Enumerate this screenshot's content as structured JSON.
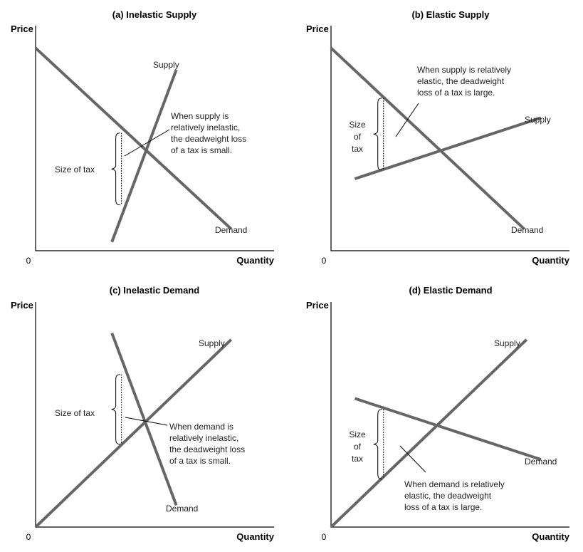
{
  "chart_data": [
    {
      "type": "line",
      "title": "(a) Inelastic Supply",
      "ylabel": "Price",
      "xlabel": "Quantity",
      "origin": "0",
      "xlim": [
        0,
        10
      ],
      "ylim": [
        0,
        10
      ],
      "series": [
        {
          "name": "Supply",
          "label": "Supply",
          "x": [
            3.2,
            5.9
          ],
          "y": [
            0.4,
            8.3
          ]
        },
        {
          "name": "Demand",
          "label": "Demand",
          "x": [
            0,
            8.2
          ],
          "y": [
            9.3,
            1.0
          ]
        }
      ],
      "tax_size_label": "Size of tax",
      "tax_gap": {
        "x": 3.6,
        "y_low": 2.1,
        "y_high": 5.4
      },
      "annotation": [
        "When supply is",
        "relatively inelastic,",
        "the deadweight loss",
        "of a tax is small."
      ]
    },
    {
      "type": "line",
      "title": "(b) Elastic Supply",
      "ylabel": "Price",
      "xlabel": "Quantity",
      "origin": "0",
      "xlim": [
        0,
        10
      ],
      "ylim": [
        0,
        10
      ],
      "series": [
        {
          "name": "Supply",
          "label": "Supply",
          "x": [
            1.0,
            8.8
          ],
          "y": [
            3.3,
            6.1
          ]
        },
        {
          "name": "Demand",
          "label": "Demand",
          "x": [
            0,
            8.1
          ],
          "y": [
            9.3,
            1.0
          ]
        }
      ],
      "tax_size_label": [
        "Size",
        "of",
        "tax"
      ],
      "tax_gap": {
        "x": 2.2,
        "y_low": 3.7,
        "y_high": 7.0
      },
      "annotation": [
        "When supply is relatively",
        "elastic, the deadweight",
        "loss of a tax is large."
      ]
    },
    {
      "type": "line",
      "title": "(c) Inelastic Demand",
      "ylabel": "Price",
      "xlabel": "Quantity",
      "origin": "0",
      "xlim": [
        0,
        10
      ],
      "ylim": [
        0,
        10
      ],
      "series": [
        {
          "name": "Supply",
          "label": "Supply",
          "x": [
            0,
            8.2
          ],
          "y": [
            0,
            8.6
          ]
        },
        {
          "name": "Demand",
          "label": "Demand",
          "x": [
            3.2,
            5.9
          ],
          "y": [
            8.9,
            1.0
          ]
        }
      ],
      "tax_size_label": "Size of tax",
      "tax_gap": {
        "x": 3.6,
        "y_low": 3.8,
        "y_high": 7.0
      },
      "annotation": [
        "When demand is",
        "relatively inelastic,",
        "the deadweight loss",
        "of a tax is small."
      ]
    },
    {
      "type": "line",
      "title": "(d) Elastic Demand",
      "ylabel": "Price",
      "xlabel": "Quantity",
      "origin": "0",
      "xlim": [
        0,
        10
      ],
      "ylim": [
        0,
        10
      ],
      "series": [
        {
          "name": "Supply",
          "label": "Supply",
          "x": [
            0,
            8.2
          ],
          "y": [
            0,
            8.6
          ]
        },
        {
          "name": "Demand",
          "label": "Demand",
          "x": [
            1.0,
            8.8
          ],
          "y": [
            5.9,
            3.1
          ]
        }
      ],
      "tax_size_label": [
        "Size",
        "of",
        "tax"
      ],
      "tax_gap": {
        "x": 2.2,
        "y_low": 2.2,
        "y_high": 5.4
      },
      "annotation": [
        "When demand is relatively",
        "elastic, the deadweight",
        "loss of a tax is large."
      ]
    }
  ]
}
